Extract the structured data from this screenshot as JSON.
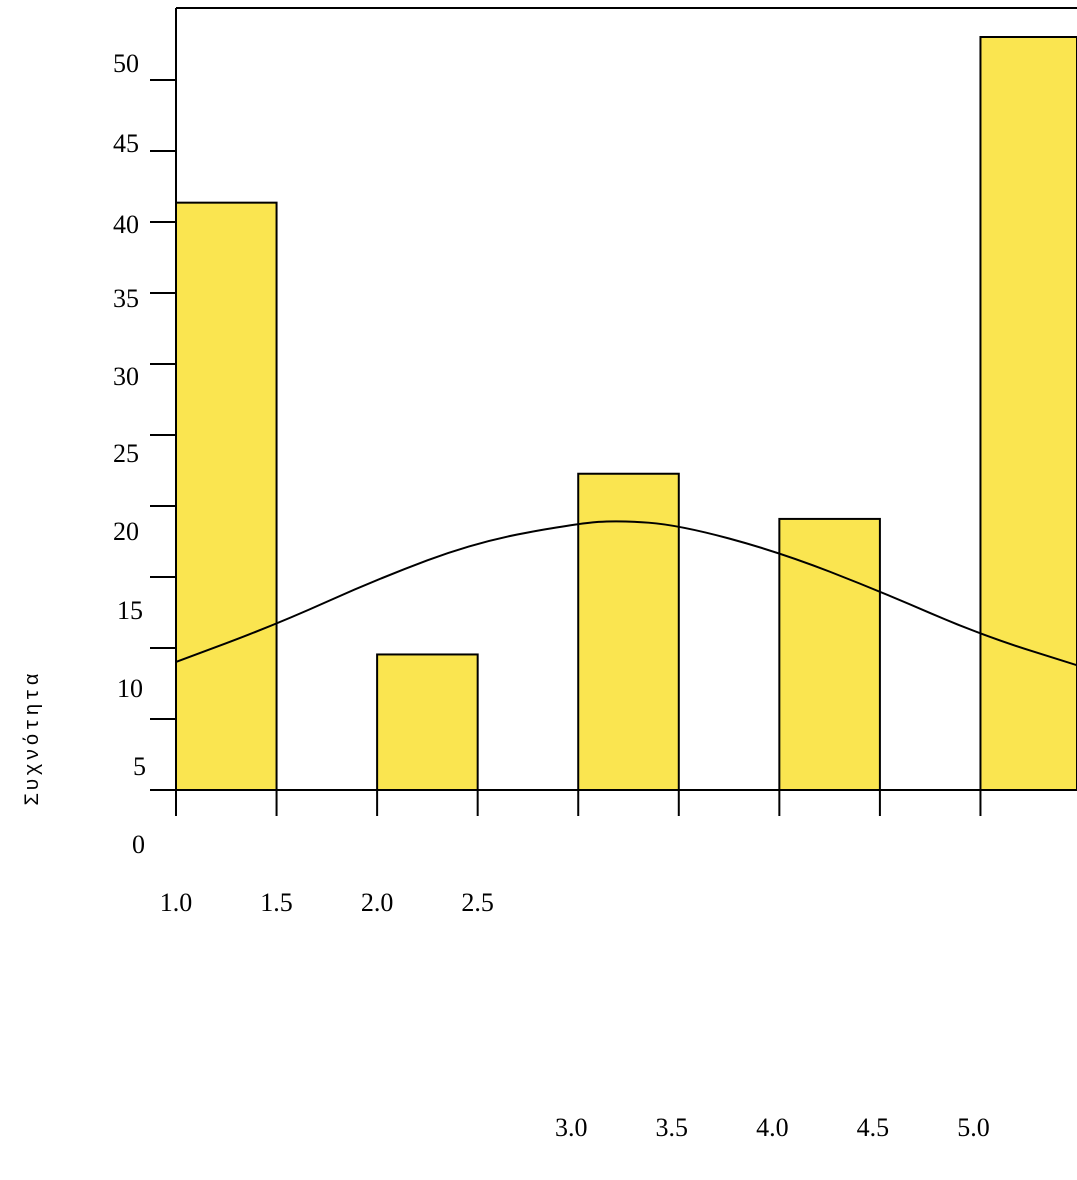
{
  "chart_data": {
    "type": "bar",
    "title": "",
    "xlabel": "",
    "ylabel": "Συχνότητα",
    "bar_color": "#FAE550",
    "edge_color": "#000000",
    "bins": [
      {
        "start": 1.0,
        "end": 1.5,
        "value": 42
      },
      {
        "start": 2.0,
        "end": 2.5,
        "value": 12
      },
      {
        "start": 3.0,
        "end": 3.5,
        "value": 24
      },
      {
        "start": 4.0,
        "end": 4.5,
        "value": 21
      },
      {
        "start": 5.0,
        "end": 5.5,
        "value": 53
      }
    ],
    "normal_curve": {
      "x": [
        1.0,
        1.5,
        2.0,
        2.5,
        3.0,
        3.2,
        3.5,
        4.0,
        4.5,
        5.0,
        5.5
      ],
      "y": [
        11.5,
        14,
        17,
        19.5,
        20.7,
        20.9,
        20.6,
        18.8,
        16.2,
        13.3,
        11.2
      ]
    },
    "y_ticks": [
      "0",
      "5",
      "10",
      "15",
      "20",
      "25",
      "30",
      "35",
      "40",
      "45",
      "50"
    ],
    "x_ticks_row1": [
      "1.0",
      "1.5",
      "2.0",
      "2.5"
    ],
    "x_ticks_row2": [
      "3.0",
      "3.5",
      "4.0",
      "4.5",
      "5.0"
    ],
    "xlim": [
      1.0,
      5.5
    ],
    "ylim": [
      0,
      55
    ],
    "grid": false,
    "legend": "none"
  }
}
